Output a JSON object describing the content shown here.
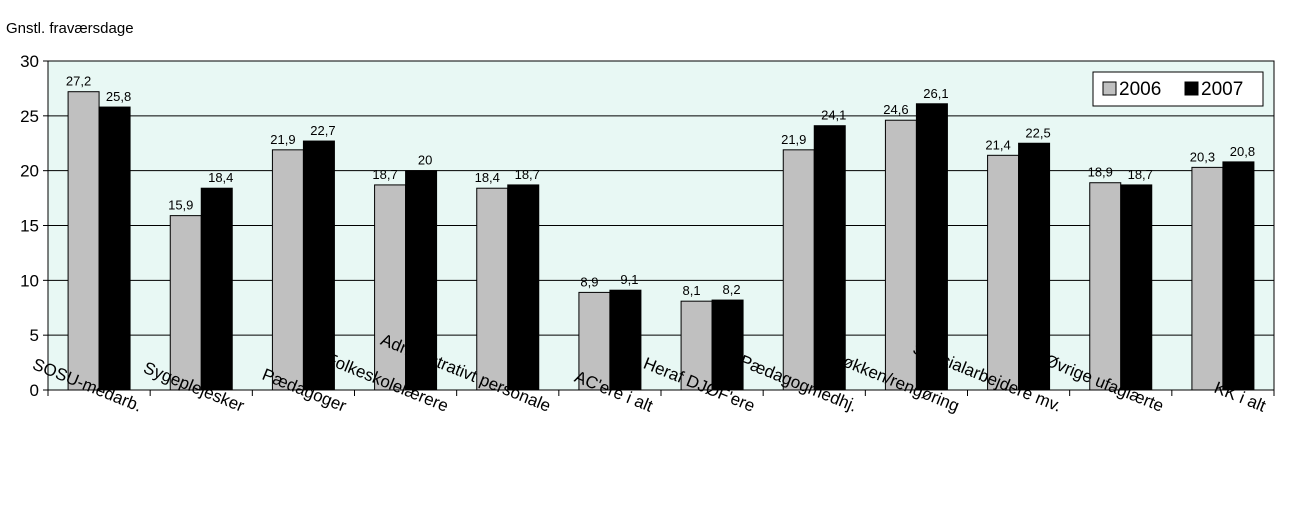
{
  "chart_data": {
    "type": "bar",
    "title": "",
    "ylabel": "Gnstl. fraværsdage",
    "xlabel": "",
    "ylim": [
      0,
      30
    ],
    "yticks": [
      0,
      5,
      10,
      15,
      20,
      25,
      30
    ],
    "grid": true,
    "legend_position": "top-right",
    "categories": [
      "SOSU-medarb.",
      "Sygeplejesker",
      "Pædagoger",
      "Folkeskolelærere",
      "Administrativt personale",
      "AC'ere i alt",
      "Heraf DJØF'ere",
      "Pædagogmedhj.",
      "Køkken/rengøring",
      "Specialarbejdere mv.",
      "Øvrige ufaglærte",
      "KK i alt"
    ],
    "series": [
      {
        "name": "2006",
        "color": "#c0c0c0",
        "values": [
          27.2,
          15.9,
          21.9,
          18.7,
          18.4,
          8.9,
          8.1,
          21.9,
          24.6,
          21.4,
          18.9,
          20.3
        ],
        "labels": [
          "27,2",
          "15,9",
          "21,9",
          "18,7",
          "18,4",
          "8,9",
          "8,1",
          "21,9",
          "24,6",
          "21,4",
          "18,9",
          "20,3"
        ]
      },
      {
        "name": "2007",
        "color": "#000000",
        "values": [
          25.8,
          18.4,
          22.7,
          20,
          18.7,
          9.1,
          8.2,
          24.1,
          26.1,
          22.5,
          18.7,
          20.8
        ],
        "labels": [
          "25,8",
          "18,4",
          "22,7",
          "20",
          "18,7",
          "9,1",
          "8,2",
          "24,1",
          "26,1",
          "22,5",
          "18,7",
          "20,8"
        ]
      }
    ],
    "plot_background": "#e8f8f4"
  }
}
